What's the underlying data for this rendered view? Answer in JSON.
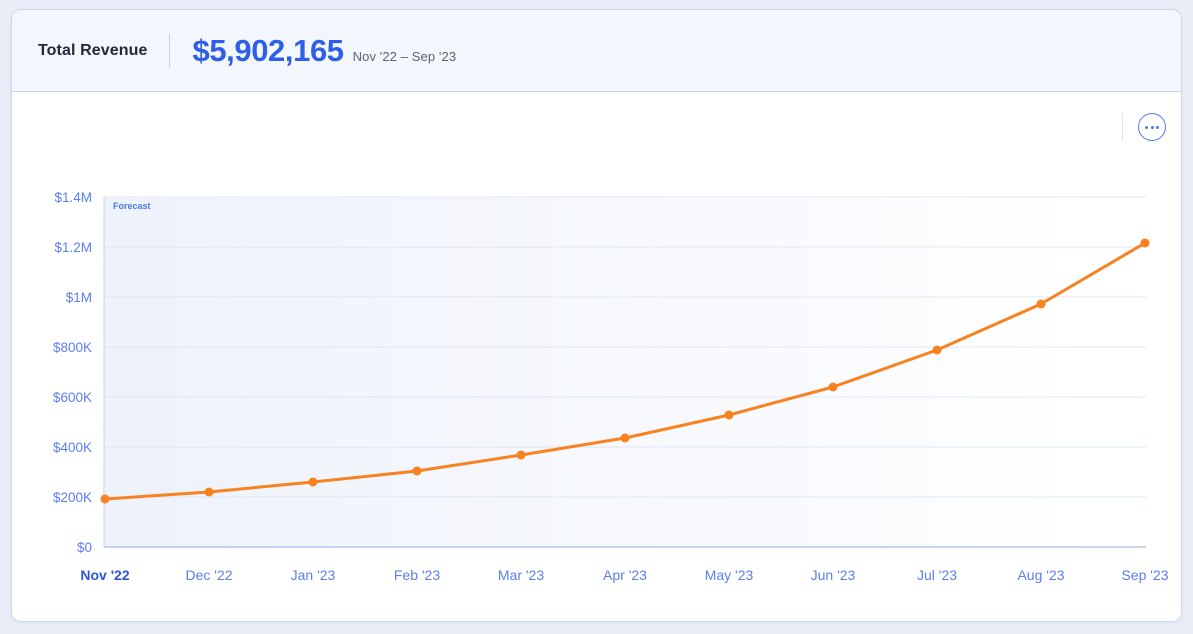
{
  "header": {
    "title": "Total Revenue",
    "amount": "$5,902,165",
    "date_range": "Nov '22 – Sep '23"
  },
  "toolbar": {
    "menu_icon": "ellipsis-icon"
  },
  "colors": {
    "page_bg": "#E9EDF8",
    "card_border": "#CCD7EE",
    "header_bg": "#F3F6FC",
    "accent_blue": "#2D5FE8",
    "axis_label_blue": "#5B7EF0",
    "active_x_label_blue": "#2E55D6",
    "line_orange": "#F8821F",
    "grid_line": "#DFE7F6",
    "baseline": "#A9BBE2",
    "plot_bg_tint": "#EDF1FA"
  },
  "chart_data": {
    "type": "line",
    "title": "",
    "annotation": "Forecast",
    "legend_position": "none",
    "grid": true,
    "x": [
      "Nov '22",
      "Dec '22",
      "Jan '23",
      "Feb '23",
      "Mar '23",
      "Apr '23",
      "May '23",
      "Jun '23",
      "Jul '23",
      "Aug '23",
      "Sep '23"
    ],
    "series": [
      {
        "name": "Forecast",
        "values": [
          192000,
          220000,
          260000,
          304000,
          368000,
          436000,
          528000,
          640000,
          788000,
          972000,
          1216000
        ]
      }
    ],
    "highlighted_x_label": "Nov '22",
    "y_tick_labels": [
      "$0",
      "$200K",
      "$400K",
      "$600K",
      "$800K",
      "$1M",
      "$1.2M",
      "$1.4M"
    ],
    "y_tick_values": [
      0,
      200000,
      400000,
      600000,
      800000,
      1000000,
      1200000,
      1400000
    ],
    "ylim": [
      0,
      1400000
    ],
    "xlabel": "",
    "ylabel": ""
  }
}
